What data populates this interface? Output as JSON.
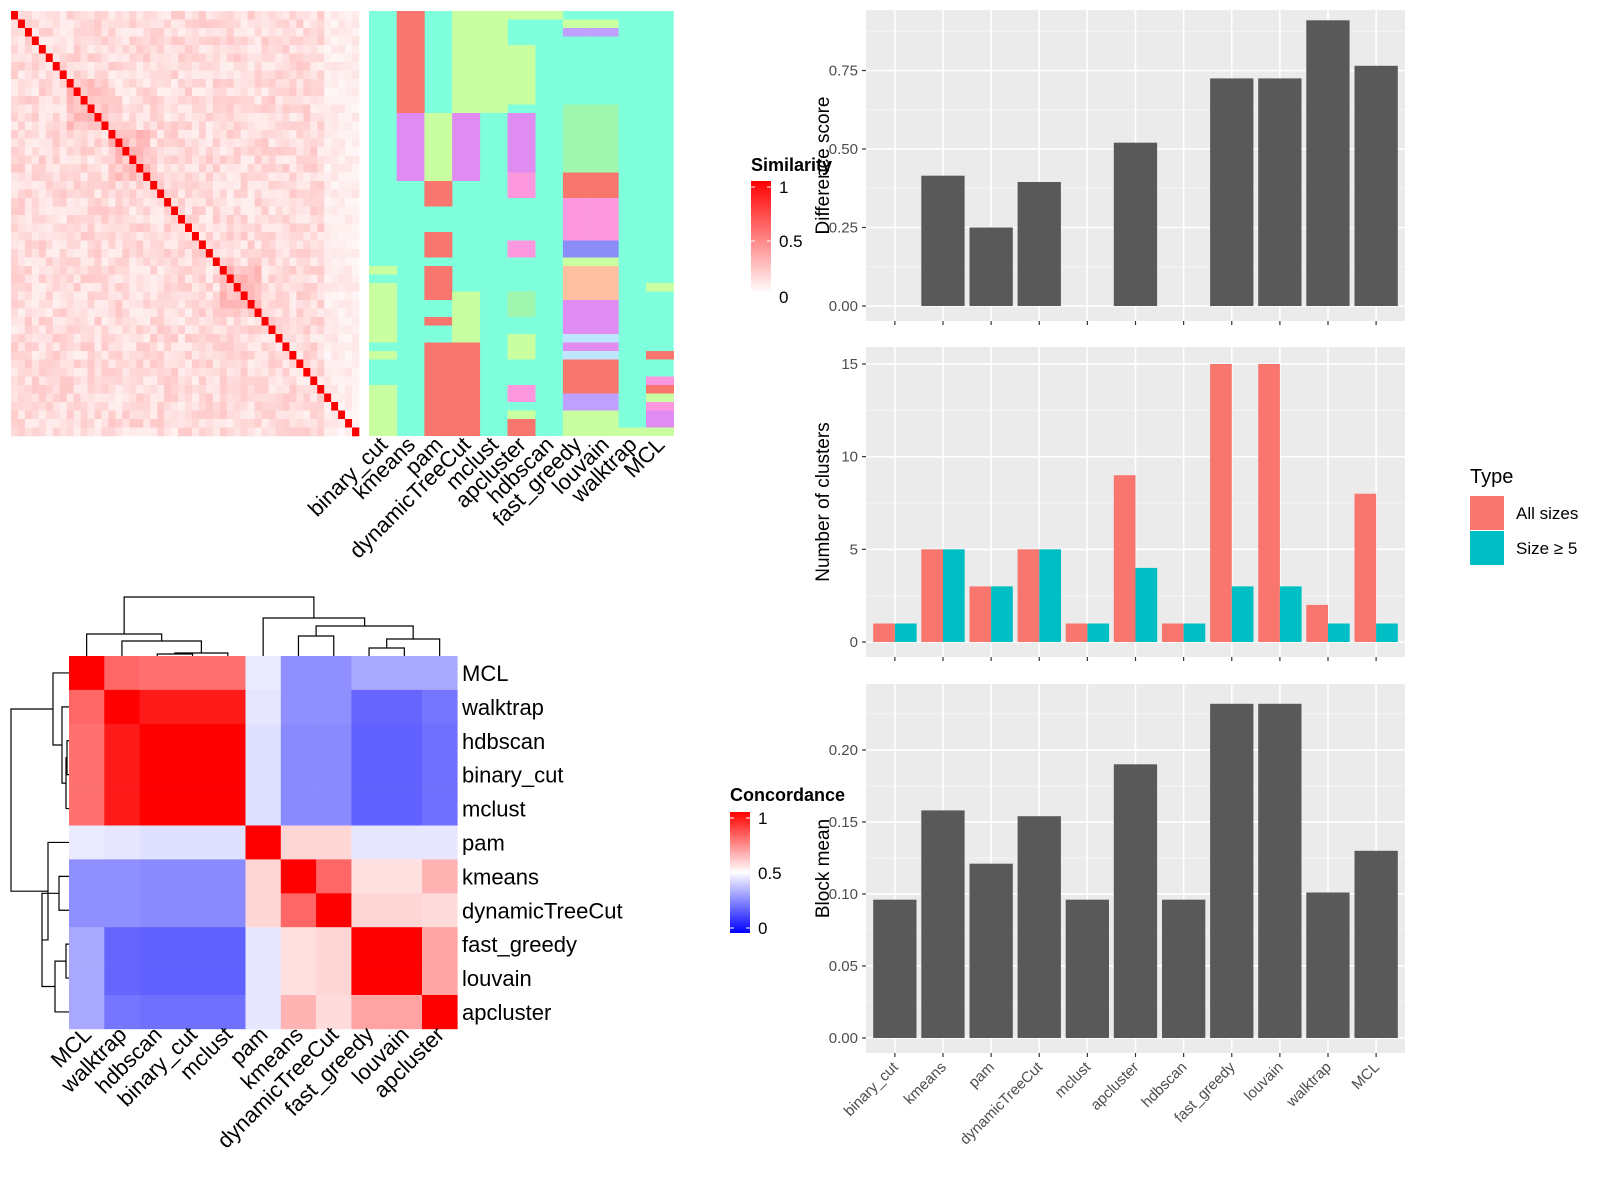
{
  "methods": [
    "binary_cut",
    "kmeans",
    "pam",
    "dynamicTreeCut",
    "mclust",
    "apcluster",
    "hdbscan",
    "fast_greedy",
    "louvain",
    "walktrap",
    "MCL"
  ],
  "colors": {
    "similarity_high": "#FF0000",
    "similarity_low": "#FFFFFF",
    "concordance_high": "#FF0000",
    "concordance_mid": "#FFFFFF",
    "concordance_low": "#0000FF",
    "bar_fill": "#595959",
    "all_sizes": "#F8766D",
    "size_ge5": "#00BFC4",
    "panel_bg": "#EBEBEB",
    "default_cluster": "#7FFFDB"
  },
  "similarity_legend": {
    "title": "Similarity",
    "ticks": [
      "1",
      "0.5",
      "0"
    ]
  },
  "concordance_legend": {
    "title": "Concordance",
    "ticks": [
      "1",
      "0.5",
      "0"
    ]
  },
  "cluster_heatmap": {
    "columns": [
      "binary_cut",
      "kmeans",
      "pam",
      "dynamicTreeCut",
      "mclust",
      "apcluster",
      "hdbscan",
      "fast_greedy",
      "louvain",
      "walktrap",
      "MCL"
    ]
  },
  "concordance": {
    "labels": [
      "MCL",
      "walktrap",
      "hdbscan",
      "binary_cut",
      "mclust",
      "pam",
      "kmeans",
      "dynamicTreeCut",
      "fast_greedy",
      "louvain",
      "apcluster"
    ],
    "matrix": [
      [
        1.0,
        0.8,
        0.78,
        0.78,
        0.78,
        0.46,
        0.28,
        0.28,
        0.33,
        0.33,
        0.33
      ],
      [
        0.8,
        1.0,
        0.95,
        0.95,
        0.95,
        0.45,
        0.28,
        0.28,
        0.2,
        0.2,
        0.23
      ],
      [
        0.78,
        0.95,
        1.0,
        1.0,
        1.0,
        0.44,
        0.27,
        0.27,
        0.19,
        0.19,
        0.22
      ],
      [
        0.78,
        0.95,
        1.0,
        1.0,
        1.0,
        0.44,
        0.27,
        0.27,
        0.19,
        0.19,
        0.22
      ],
      [
        0.78,
        0.95,
        1.0,
        1.0,
        1.0,
        0.44,
        0.27,
        0.27,
        0.19,
        0.19,
        0.22
      ],
      [
        0.46,
        0.45,
        0.44,
        0.44,
        0.44,
        1.0,
        0.58,
        0.58,
        0.45,
        0.45,
        0.45
      ],
      [
        0.28,
        0.28,
        0.27,
        0.27,
        0.27,
        0.58,
        1.0,
        0.8,
        0.56,
        0.56,
        0.65
      ],
      [
        0.28,
        0.28,
        0.27,
        0.27,
        0.27,
        0.58,
        0.8,
        1.0,
        0.58,
        0.58,
        0.57
      ],
      [
        0.33,
        0.2,
        0.19,
        0.19,
        0.19,
        0.45,
        0.56,
        0.58,
        1.0,
        1.0,
        0.68
      ],
      [
        0.33,
        0.2,
        0.19,
        0.19,
        0.19,
        0.45,
        0.56,
        0.58,
        1.0,
        1.0,
        0.68
      ],
      [
        0.33,
        0.23,
        0.22,
        0.22,
        0.22,
        0.45,
        0.65,
        0.57,
        0.68,
        0.68,
        1.0
      ]
    ]
  },
  "chart_data": [
    {
      "type": "bar",
      "categories": [
        "binary_cut",
        "kmeans",
        "pam",
        "dynamicTreeCut",
        "mclust",
        "apcluster",
        "hdbscan",
        "fast_greedy",
        "louvain",
        "walktrap",
        "MCL"
      ],
      "values": [
        0.0,
        0.415,
        0.25,
        0.395,
        0.0,
        0.52,
        0.0,
        0.725,
        0.725,
        0.91,
        0.765
      ],
      "ylabel": "Difference score",
      "ylim": [
        0,
        0.93
      ],
      "yticks": [
        "0.00",
        "0.25",
        "0.50",
        "0.75"
      ]
    },
    {
      "type": "bar",
      "categories": [
        "binary_cut",
        "kmeans",
        "pam",
        "dynamicTreeCut",
        "mclust",
        "apcluster",
        "hdbscan",
        "fast_greedy",
        "louvain",
        "walktrap",
        "MCL"
      ],
      "series": [
        {
          "name": "All sizes",
          "values": [
            1,
            5,
            3,
            5,
            1,
            9,
            1,
            15,
            15,
            2,
            8
          ]
        },
        {
          "name": "Size ≥ 5",
          "values": [
            1,
            5,
            3,
            5,
            1,
            4,
            1,
            3,
            3,
            1,
            1
          ]
        }
      ],
      "ylabel": "Number of clusters",
      "ylim": [
        0,
        15.7
      ],
      "yticks": [
        "0",
        "5",
        "10",
        "15"
      ],
      "legend": {
        "title": "Type",
        "position": "right"
      }
    },
    {
      "type": "bar",
      "categories": [
        "binary_cut",
        "kmeans",
        "pam",
        "dynamicTreeCut",
        "mclust",
        "apcluster",
        "hdbscan",
        "fast_greedy",
        "louvain",
        "walktrap",
        "MCL"
      ],
      "values": [
        0.096,
        0.158,
        0.121,
        0.154,
        0.096,
        0.19,
        0.096,
        0.232,
        0.232,
        0.101,
        0.13
      ],
      "ylabel": "Block mean",
      "ylim": [
        0,
        0.243
      ],
      "yticks": [
        "0.00",
        "0.05",
        "0.10",
        "0.15",
        "0.20"
      ]
    }
  ]
}
